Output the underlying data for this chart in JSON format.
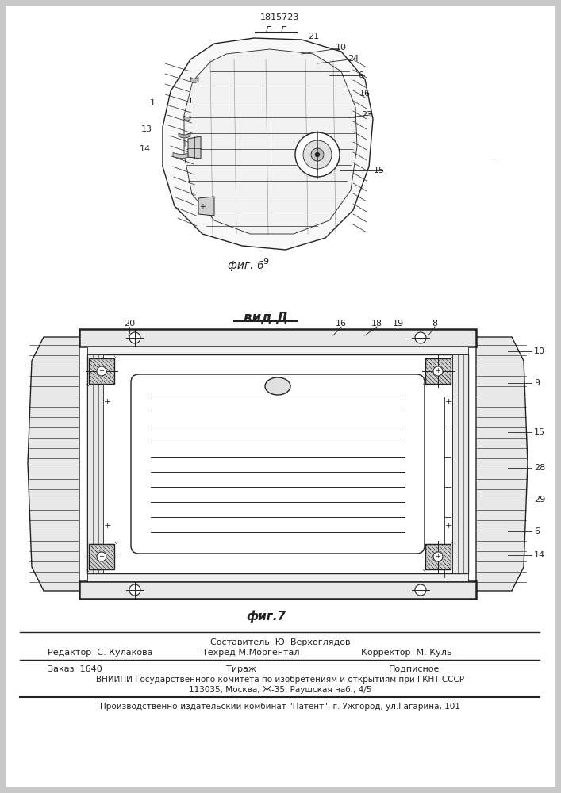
{
  "bg_color": "#f0f0f0",
  "patent_number": "1815723",
  "fig6_label": "фиг. 6",
  "fig7_label": "фиг.7",
  "view_label": "вид Д",
  "г_г_label": "г - г",
  "footer_line1": "Составитель  Ю. Верхоглядов",
  "footer_line2_left": "Редактор  С. Кулакова",
  "footer_line2_mid": "Техред М.Моргентал",
  "footer_line2_right": "Корректор  М. Куль",
  "footer_line3_left": "Заказ  1640",
  "footer_line3_mid": "Тираж",
  "footer_line3_right": "Подписное",
  "footer_line4": "ВНИИПИ Государственного комитета по изобретениям и открытиям при ГКНТ СССР",
  "footer_line5": "113035, Москва, Ж-35, Раушская наб., 4/5",
  "footer_line6": "Производственно-издательский комбинат \"Патент\", г. Ужгород, ул.Гагарина, 101"
}
